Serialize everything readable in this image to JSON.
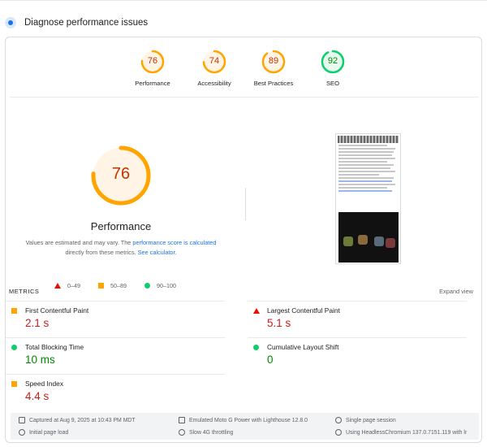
{
  "header": {
    "title": "Diagnose performance issues"
  },
  "gauges": [
    {
      "score": "76",
      "label": "Performance",
      "fraction": 0.76,
      "color": "#ffa400"
    },
    {
      "score": "74",
      "label": "Accessibility",
      "fraction": 0.74,
      "color": "#ffa400"
    },
    {
      "score": "89",
      "label": "Best Practices",
      "fraction": 0.89,
      "color": "#ffa400"
    },
    {
      "score": "92",
      "label": "SEO",
      "fraction": 0.92,
      "color": "#0cce6b"
    }
  ],
  "main": {
    "score": "76",
    "fraction": 0.76,
    "title": "Performance",
    "note_prefix": "Values are estimated and may vary. The ",
    "note_link1": "performance score is calculated",
    "note_mid": " directly from these metrics. ",
    "note_link2": "See calculator.",
    "legend": [
      "0–49",
      "50–89",
      "90–100"
    ]
  },
  "metrics": {
    "heading": "METRICS",
    "expand": "Expand view",
    "items": [
      {
        "name": "First Contentful Paint",
        "value": "2.1 s",
        "status": "average"
      },
      {
        "name": "Largest Contentful Paint",
        "value": "5.1 s",
        "status": "fail"
      },
      {
        "name": "Total Blocking Time",
        "value": "10 ms",
        "status": "pass"
      },
      {
        "name": "Cumulative Layout Shift",
        "value": "0",
        "status": "pass"
      },
      {
        "name": "Speed Index",
        "value": "4.4 s",
        "status": "average"
      }
    ]
  },
  "footer": {
    "captured": "Captured at Aug 9, 2025 at 10:43 PM MDT",
    "load": "Initial page load",
    "device": "Emulated Moto G Power with Lighthouse 12.8.0",
    "throttle": "Slow 4G throttling",
    "session": "Single page session",
    "browser": "Using HeadlessChromium 137.0.7151.119 with lr"
  },
  "colors": {
    "orange": "#ffa400",
    "green": "#0cce6b",
    "red": "#eb0f00",
    "link": "#1a73e8"
  }
}
